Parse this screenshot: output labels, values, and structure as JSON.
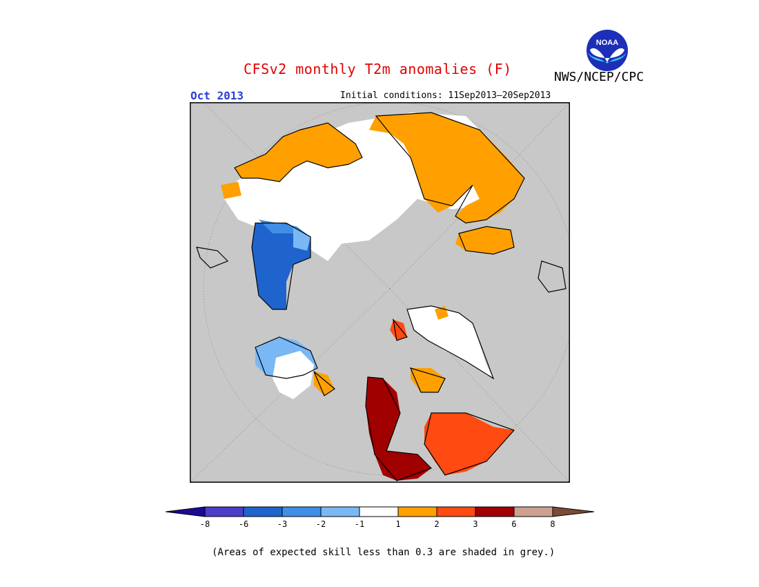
{
  "header": {
    "title": "CFSv2 monthly T2m anomalies (F)",
    "org": "NWS/NCEP/CPC",
    "month": "Oct 2013",
    "initial_conditions": "Initial conditions: 11Sep2013–20Sep2013",
    "logo_text": "NOAA"
  },
  "colors": {
    "ocean_grey": "#c8c8c8",
    "neutral_white": "#ffffff",
    "land_outline": "#000000",
    "title_red": "#e00000",
    "month_blue": "#2b3fd6"
  },
  "legend": {
    "ticks": [
      "-8",
      "-6",
      "-3",
      "-2",
      "-1",
      "1",
      "2",
      "3",
      "6",
      "8"
    ],
    "colors": [
      "#1a0a96",
      "#4b3ec8",
      "#1f64cc",
      "#3f8fe6",
      "#7ab8f5",
      "#ffffff",
      "#ffa000",
      "#ff4a12",
      "#a00000",
      "#cda090",
      "#7a4b36"
    ]
  },
  "footnote": "(Areas of expected skill less than 0.3 are shaded in grey.)"
}
